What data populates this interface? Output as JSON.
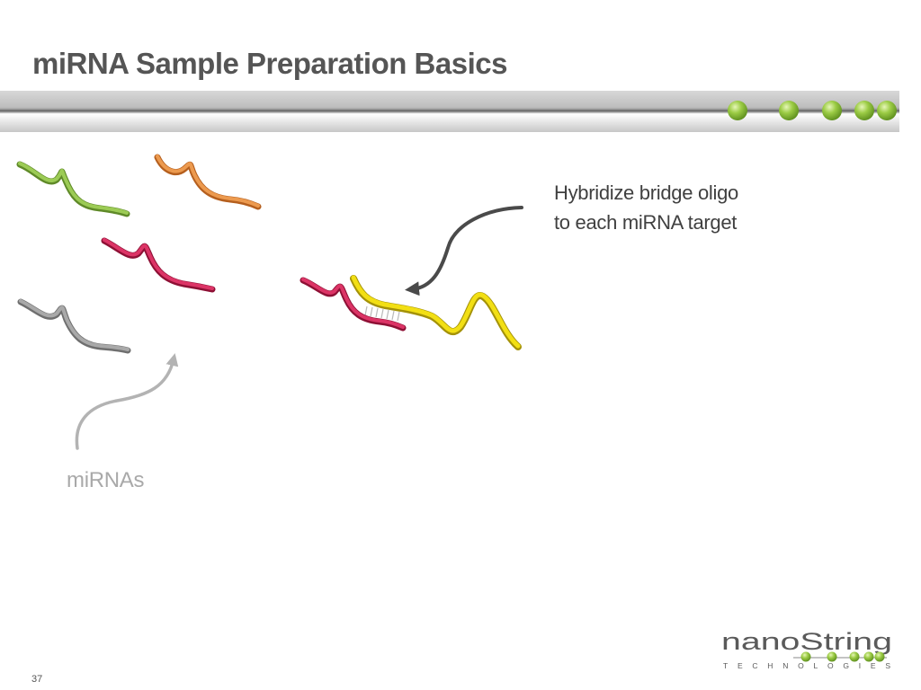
{
  "slide": {
    "title": "miRNA Sample Preparation Basics",
    "callout_lines": [
      "Hybridize bridge oligo",
      "to each miRNA target"
    ],
    "mirnas_label": "miRNAs",
    "page_number": "37"
  },
  "logo": {
    "wordmark": "nanoString",
    "tagline": "TECHNOLOGIES"
  },
  "colors": {
    "title_text": "#555555",
    "strand_green": "#8dbf4a",
    "strand_orange": "#e08a3c",
    "strand_red": "#d42a5a",
    "strand_gray": "#9a9a9a",
    "bridge_oligo_yellow": "#f0dc10",
    "header_dot_green": "#8fc43a"
  },
  "icons": {
    "header_dots": "green-sphere-icon",
    "callout_arrow": "curved-arrow-icon",
    "mirnas_arrow": "curved-arrow-icon"
  }
}
